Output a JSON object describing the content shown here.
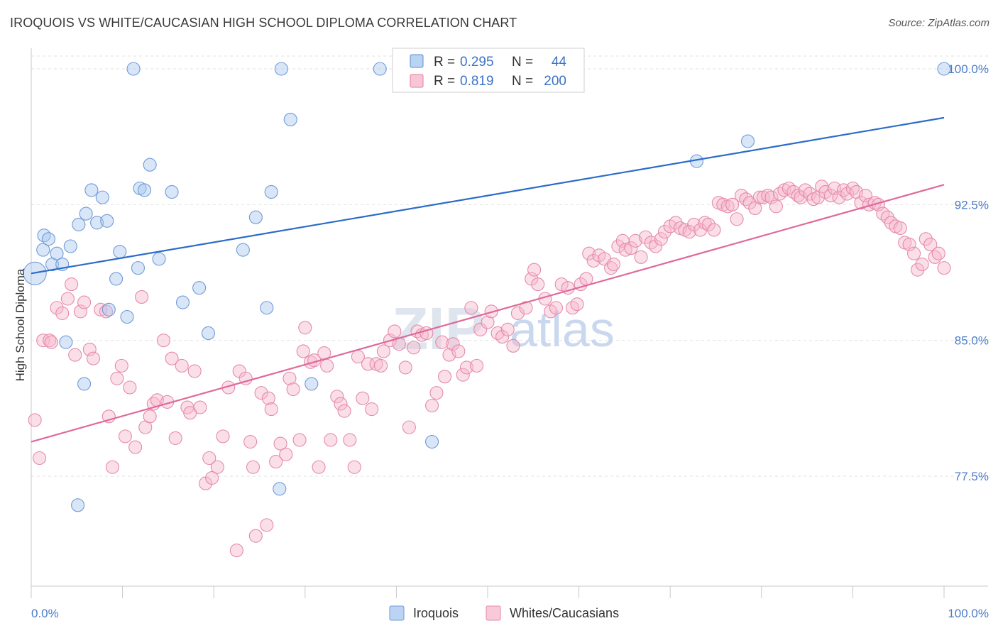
{
  "title": "IROQUOIS VS WHITE/CAUCASIAN HIGH SCHOOL DIPLOMA CORRELATION CHART",
  "source": "Source: ZipAtlas.com",
  "watermark": {
    "zip": "ZIP",
    "atlas": "atlas"
  },
  "legend": {
    "rows": [
      {
        "r_label": "R =",
        "r_value": "0.295",
        "n_label": "N =",
        "n_value": "44",
        "color": "#a8c8f0",
        "stroke": "#5b8fd6"
      },
      {
        "r_label": "R =",
        "r_value": "0.819",
        "n_label": "N =",
        "n_value": "200",
        "color": "#f6b9cd",
        "stroke": "#e37aa0"
      }
    ]
  },
  "bottom_legend": [
    {
      "label": "Iroquois",
      "color": "#bcd4f4",
      "stroke": "#6f9bd8"
    },
    {
      "label": "Whites/Caucasians",
      "color": "#f8c9d8",
      "stroke": "#e58aab"
    }
  ],
  "chart_data": {
    "type": "scatter",
    "title": "IROQUOIS VS WHITE/CAUCASIAN HIGH SCHOOL DIPLOMA CORRELATION CHART",
    "xlabel": "",
    "ylabel": "High School Diploma",
    "xlim": [
      0,
      100
    ],
    "ylim": [
      71.5,
      101
    ],
    "x_tick_labels": [
      {
        "value": 0,
        "label": "0.0%"
      },
      {
        "value": 100,
        "label": "100.0%"
      }
    ],
    "y_tick_labels": [
      {
        "value": 100,
        "label": "100.0%"
      },
      {
        "value": 92.5,
        "label": "92.5%"
      },
      {
        "value": 85,
        "label": "85.0%"
      },
      {
        "value": 77.5,
        "label": "77.5%"
      }
    ],
    "grid": true,
    "legend_position": "top-center",
    "series": [
      {
        "name": "Iroquois",
        "color": "#a8c8f0",
        "stroke": "#6f9bd8",
        "trend": {
          "x": [
            0,
            100
          ],
          "y": [
            88.7,
            97.3
          ],
          "color": "#2b6cc9"
        },
        "points": [
          [
            0.4,
            88.7
          ],
          [
            1.3,
            90.0
          ],
          [
            1.4,
            90.8
          ],
          [
            1.9,
            90.6
          ],
          [
            2.3,
            89.2
          ],
          [
            2.8,
            89.8
          ],
          [
            3.4,
            89.2
          ],
          [
            3.8,
            84.9
          ],
          [
            4.3,
            90.2
          ],
          [
            5.1,
            75.9
          ],
          [
            5.2,
            91.4
          ],
          [
            5.8,
            82.6
          ],
          [
            6.0,
            92.0
          ],
          [
            6.6,
            93.3
          ],
          [
            7.2,
            91.5
          ],
          [
            7.8,
            92.9
          ],
          [
            8.3,
            91.6
          ],
          [
            8.5,
            86.7
          ],
          [
            9.3,
            88.4
          ],
          [
            9.7,
            89.9
          ],
          [
            10.5,
            86.3
          ],
          [
            11.2,
            100.0
          ],
          [
            11.7,
            89.0
          ],
          [
            11.9,
            93.4
          ],
          [
            12.4,
            93.3
          ],
          [
            13.0,
            94.7
          ],
          [
            14.0,
            89.5
          ],
          [
            15.4,
            93.2
          ],
          [
            16.6,
            87.1
          ],
          [
            18.4,
            87.9
          ],
          [
            19.4,
            85.4
          ],
          [
            23.2,
            90.0
          ],
          [
            24.6,
            91.8
          ],
          [
            25.8,
            86.8
          ],
          [
            26.3,
            93.2
          ],
          [
            27.2,
            76.8
          ],
          [
            27.4,
            100.0
          ],
          [
            28.4,
            97.2
          ],
          [
            30.7,
            82.6
          ],
          [
            38.2,
            100.0
          ],
          [
            43.9,
            79.4
          ],
          [
            72.9,
            94.9
          ],
          [
            78.5,
            96.0
          ],
          [
            100.0,
            100.0
          ]
        ]
      },
      {
        "name": "Whites/Caucasians",
        "color": "#f6b9cd",
        "stroke": "#e58aab",
        "trend": {
          "x": [
            0,
            100
          ],
          "y": [
            79.4,
            93.6
          ],
          "color": "#e0699a"
        },
        "points": [
          [
            0.4,
            80.6
          ],
          [
            0.9,
            78.5
          ],
          [
            1.3,
            85.0
          ],
          [
            2.0,
            85.0
          ],
          [
            2.2,
            84.9
          ],
          [
            2.8,
            86.8
          ],
          [
            3.4,
            86.5
          ],
          [
            4.0,
            87.3
          ],
          [
            4.4,
            88.1
          ],
          [
            4.8,
            84.2
          ],
          [
            5.4,
            86.6
          ],
          [
            5.8,
            87.1
          ],
          [
            6.4,
            84.5
          ],
          [
            6.8,
            84.0
          ],
          [
            7.6,
            86.7
          ],
          [
            8.2,
            86.6
          ],
          [
            8.5,
            80.8
          ],
          [
            8.9,
            78.0
          ],
          [
            9.4,
            82.9
          ],
          [
            9.9,
            83.6
          ],
          [
            10.3,
            79.7
          ],
          [
            10.8,
            82.4
          ],
          [
            11.4,
            79.1
          ],
          [
            12.1,
            87.4
          ],
          [
            12.5,
            80.2
          ],
          [
            13.0,
            80.8
          ],
          [
            13.4,
            81.5
          ],
          [
            13.8,
            81.7
          ],
          [
            14.5,
            85.0
          ],
          [
            14.9,
            81.6
          ],
          [
            15.4,
            84.0
          ],
          [
            15.8,
            79.6
          ],
          [
            16.5,
            83.6
          ],
          [
            17.1,
            81.3
          ],
          [
            17.4,
            81.0
          ],
          [
            17.9,
            83.3
          ],
          [
            18.5,
            81.3
          ],
          [
            19.1,
            77.1
          ],
          [
            19.5,
            78.5
          ],
          [
            19.8,
            77.4
          ],
          [
            20.4,
            78.0
          ],
          [
            21.0,
            79.7
          ],
          [
            21.6,
            82.4
          ],
          [
            22.5,
            73.4
          ],
          [
            22.8,
            83.3
          ],
          [
            23.5,
            82.9
          ],
          [
            24.0,
            79.4
          ],
          [
            24.3,
            78.0
          ],
          [
            24.6,
            74.2
          ],
          [
            25.2,
            82.1
          ],
          [
            25.8,
            74.8
          ],
          [
            26.0,
            81.8
          ],
          [
            26.3,
            81.2
          ],
          [
            26.8,
            78.3
          ],
          [
            27.3,
            79.3
          ],
          [
            27.9,
            78.7
          ],
          [
            28.3,
            82.9
          ],
          [
            28.7,
            82.3
          ],
          [
            29.4,
            79.5
          ],
          [
            29.8,
            84.4
          ],
          [
            30.0,
            85.7
          ],
          [
            30.6,
            83.8
          ],
          [
            31.0,
            83.9
          ],
          [
            31.5,
            78.0
          ],
          [
            32.1,
            84.3
          ],
          [
            32.4,
            83.6
          ],
          [
            32.8,
            79.5
          ],
          [
            33.5,
            81.9
          ],
          [
            33.9,
            81.5
          ],
          [
            34.3,
            81.1
          ],
          [
            34.9,
            79.5
          ],
          [
            35.4,
            78.0
          ],
          [
            35.8,
            84.1
          ],
          [
            36.3,
            81.8
          ],
          [
            36.9,
            83.7
          ],
          [
            37.3,
            81.2
          ],
          [
            37.8,
            83.7
          ],
          [
            38.3,
            83.6
          ],
          [
            38.6,
            84.4
          ],
          [
            39.3,
            85.0
          ],
          [
            39.8,
            85.5
          ],
          [
            40.3,
            84.8
          ],
          [
            41.0,
            83.5
          ],
          [
            41.4,
            80.2
          ],
          [
            41.9,
            84.6
          ],
          [
            42.3,
            85.5
          ],
          [
            42.8,
            85.3
          ],
          [
            43.3,
            85.4
          ],
          [
            43.9,
            81.4
          ],
          [
            44.4,
            82.1
          ],
          [
            45.0,
            84.9
          ],
          [
            45.3,
            83.0
          ],
          [
            45.8,
            84.2
          ],
          [
            46.2,
            84.8
          ],
          [
            46.8,
            84.4
          ],
          [
            47.3,
            83.1
          ],
          [
            47.7,
            83.5
          ],
          [
            48.2,
            86.8
          ],
          [
            48.8,
            83.6
          ],
          [
            49.2,
            85.6
          ],
          [
            50.0,
            86.0
          ],
          [
            50.4,
            86.6
          ],
          [
            51.1,
            85.4
          ],
          [
            51.6,
            85.2
          ],
          [
            52.2,
            85.6
          ],
          [
            52.8,
            84.7
          ],
          [
            53.3,
            86.5
          ],
          [
            54.2,
            86.8
          ],
          [
            54.8,
            88.4
          ],
          [
            55.1,
            88.9
          ],
          [
            55.5,
            88.1
          ],
          [
            56.3,
            87.3
          ],
          [
            56.9,
            86.6
          ],
          [
            57.5,
            86.8
          ],
          [
            58.1,
            88.1
          ],
          [
            58.8,
            87.9
          ],
          [
            59.3,
            86.8
          ],
          [
            59.8,
            87.0
          ],
          [
            60.2,
            88.1
          ],
          [
            60.8,
            88.4
          ],
          [
            61.1,
            89.8
          ],
          [
            61.6,
            89.4
          ],
          [
            62.2,
            89.7
          ],
          [
            62.8,
            89.5
          ],
          [
            63.5,
            89.0
          ],
          [
            63.8,
            89.2
          ],
          [
            64.3,
            90.2
          ],
          [
            64.8,
            90.5
          ],
          [
            65.1,
            90.0
          ],
          [
            65.7,
            90.1
          ],
          [
            66.2,
            90.5
          ],
          [
            66.8,
            89.6
          ],
          [
            67.3,
            90.7
          ],
          [
            67.9,
            90.4
          ],
          [
            68.4,
            90.2
          ],
          [
            69.0,
            90.6
          ],
          [
            69.4,
            91.0
          ],
          [
            70.0,
            91.3
          ],
          [
            70.6,
            91.5
          ],
          [
            71.1,
            91.2
          ],
          [
            71.6,
            91.1
          ],
          [
            72.1,
            91.0
          ],
          [
            72.6,
            91.4
          ],
          [
            73.3,
            91.1
          ],
          [
            73.8,
            91.5
          ],
          [
            74.2,
            91.4
          ],
          [
            74.8,
            91.1
          ],
          [
            75.3,
            92.6
          ],
          [
            75.8,
            92.5
          ],
          [
            76.3,
            92.4
          ],
          [
            76.8,
            92.5
          ],
          [
            77.3,
            91.7
          ],
          [
            77.8,
            93.0
          ],
          [
            78.3,
            92.8
          ],
          [
            78.7,
            92.6
          ],
          [
            79.3,
            92.3
          ],
          [
            79.8,
            92.9
          ],
          [
            80.2,
            92.9
          ],
          [
            80.7,
            93.0
          ],
          [
            81.1,
            92.9
          ],
          [
            81.6,
            92.4
          ],
          [
            82.0,
            93.1
          ],
          [
            82.5,
            93.3
          ],
          [
            83.0,
            93.4
          ],
          [
            83.5,
            93.2
          ],
          [
            84.0,
            93.0
          ],
          [
            84.3,
            92.9
          ],
          [
            84.8,
            93.3
          ],
          [
            85.3,
            93.1
          ],
          [
            85.7,
            92.8
          ],
          [
            86.2,
            92.9
          ],
          [
            86.6,
            93.5
          ],
          [
            87.0,
            93.2
          ],
          [
            87.6,
            93.0
          ],
          [
            88.0,
            93.4
          ],
          [
            88.5,
            92.9
          ],
          [
            89.0,
            93.3
          ],
          [
            89.4,
            93.1
          ],
          [
            90.0,
            93.4
          ],
          [
            90.4,
            93.2
          ],
          [
            90.9,
            92.6
          ],
          [
            91.4,
            93.0
          ],
          [
            91.8,
            92.5
          ],
          [
            92.4,
            92.6
          ],
          [
            92.8,
            92.5
          ],
          [
            93.3,
            92.0
          ],
          [
            93.8,
            91.8
          ],
          [
            94.2,
            91.5
          ],
          [
            94.7,
            91.3
          ],
          [
            95.2,
            91.2
          ],
          [
            95.7,
            90.4
          ],
          [
            96.2,
            90.3
          ],
          [
            96.7,
            89.8
          ],
          [
            97.1,
            88.9
          ],
          [
            97.6,
            89.2
          ],
          [
            98.0,
            90.6
          ],
          [
            98.5,
            90.3
          ],
          [
            99.0,
            89.6
          ],
          [
            99.4,
            89.8
          ],
          [
            100.0,
            89.0
          ]
        ]
      }
    ]
  }
}
